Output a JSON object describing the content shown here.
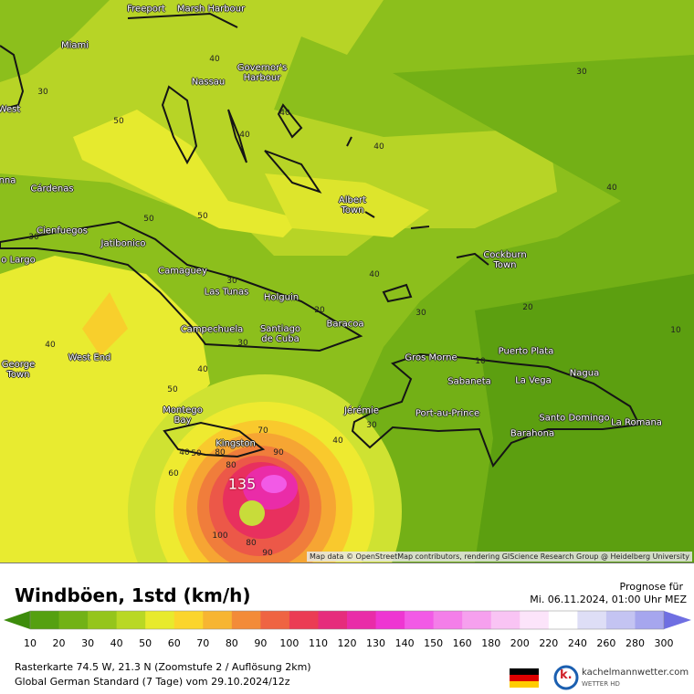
{
  "map": {
    "cities": [
      "Freeport",
      "Marsh Harbour",
      "Miami",
      "Nassau",
      "Governor's Harbour",
      "West",
      "nna",
      "Cárdenas",
      "Albert Town",
      "Cienfuegos",
      "Jatibonico",
      "Cockburn Town",
      "o Largo",
      "Camaguey",
      "Las Tunas",
      "Holguin",
      "Baracoa",
      "Campechuela",
      "Santiago de Cuba",
      "George Town",
      "West End",
      "Gros Morne",
      "Puerto Plata",
      "Sabaneta",
      "La Vega",
      "Nagua",
      "Montego Bay",
      "Jérémie",
      "Port-au-Prince",
      "Santo Domingo",
      "La Romana",
      "Barahona",
      "Kingston"
    ],
    "contour_labels": [
      40,
      30,
      50,
      40,
      40,
      30,
      40,
      40,
      50,
      50,
      30,
      40,
      20,
      30,
      30,
      20,
      30,
      10,
      40,
      40,
      50,
      40,
      30,
      10,
      70,
      80,
      90,
      40,
      50,
      60,
      80,
      100,
      80,
      90
    ],
    "peak_label": 135,
    "attribution": "Map data © OpenStreetMap contributors, rendering GIScience Research Group @ Heidelberg University"
  },
  "legend": {
    "title": "Windböen, 1std (km/h)",
    "forecast_label": "Prognose für",
    "forecast_time": "Mi. 06.11.2024, 01:00 Uhr MEZ",
    "ticks": [
      10,
      20,
      30,
      40,
      50,
      60,
      70,
      80,
      90,
      100,
      110,
      120,
      130,
      140,
      150,
      160,
      180,
      200,
      220,
      240,
      260,
      280,
      300
    ],
    "colors": [
      "#3d8c0c",
      "#55a010",
      "#72b216",
      "#95c51c",
      "#b9d824",
      "#e8ea2c",
      "#fbd52c",
      "#f7b532",
      "#f38b38",
      "#ef6442",
      "#eb3c54",
      "#e62c7c",
      "#e92ca8",
      "#ee36d2",
      "#f25ae6",
      "#f47ee9",
      "#f6a0ee",
      "#f9c4f4",
      "#fce4fa",
      "#ffffff",
      "#dedef6",
      "#c4c4f2",
      "#a6a6ee",
      "#8a8aea",
      "#6f6fe2"
    ]
  },
  "footer": {
    "line1": "Rasterkarte 74.5 W, 21.3 N (Zoomstufe 2 / Auflösung 2km)",
    "line2": "Global German Standard (7 Tage) vom 29.10.2024/12z",
    "logo_mark": "k.",
    "site": "kachelmannwetter.com",
    "tagline": "WETTER HD"
  }
}
